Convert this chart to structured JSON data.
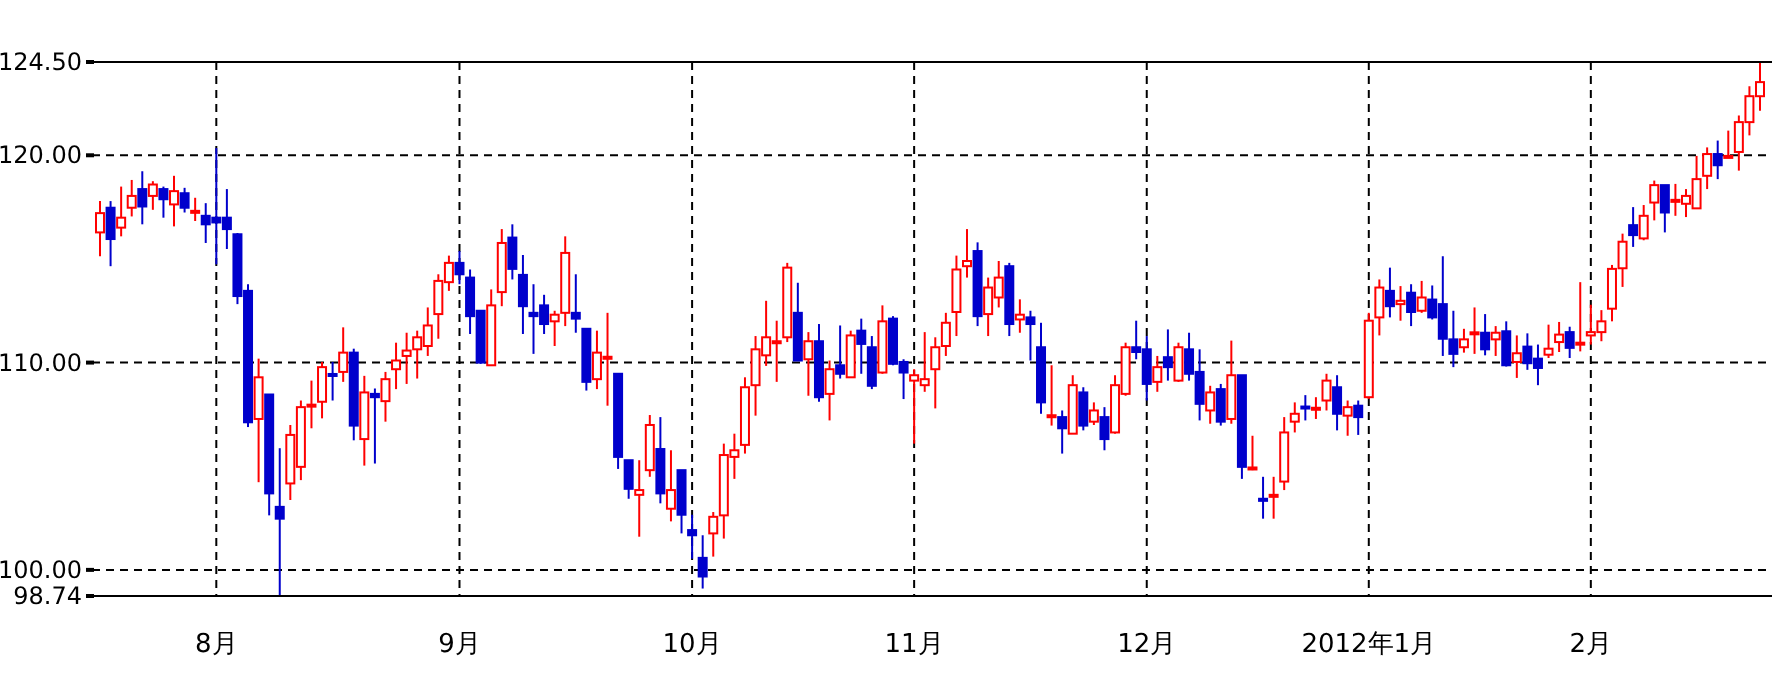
{
  "chart_data": {
    "type": "candlestick",
    "categories": [
      null,
      null,
      null,
      null,
      null,
      null,
      null,
      null,
      null,
      null,
      null,
      "8月",
      null,
      null,
      null,
      null,
      null,
      null,
      null,
      null,
      null,
      null,
      null,
      null,
      null,
      null,
      null,
      null,
      null,
      null,
      null,
      null,
      null,
      null,
      "9月",
      null,
      null,
      null,
      null,
      null,
      null,
      null,
      null,
      null,
      null,
      null,
      null,
      null,
      null,
      null,
      null,
      null,
      null,
      null,
      null,
      null,
      "10月",
      null,
      null,
      null,
      null,
      null,
      null,
      null,
      null,
      null,
      null,
      null,
      null,
      null,
      null,
      null,
      null,
      null,
      null,
      null,
      null,
      "11月",
      null,
      null,
      null,
      null,
      null,
      null,
      null,
      null,
      null,
      null,
      null,
      null,
      null,
      null,
      null,
      null,
      null,
      null,
      null,
      null,
      null,
      "12月",
      null,
      null,
      null,
      null,
      null,
      null,
      null,
      null,
      null,
      null,
      null,
      null,
      null,
      null,
      null,
      null,
      null,
      null,
      null,
      null,
      "2012年1月",
      null,
      null,
      null,
      null,
      null,
      null,
      null,
      null,
      null,
      null,
      null,
      null,
      null,
      null,
      null,
      null,
      null,
      null,
      null,
      null,
      "2月",
      null,
      null,
      null,
      null,
      null,
      null,
      null,
      null,
      null,
      null,
      null,
      null,
      null,
      null,
      null,
      null
    ],
    "ohlc": [
      [
        116.28,
        117.79,
        115.13,
        117.21
      ],
      [
        117.47,
        117.79,
        114.65,
        115.96
      ],
      [
        116.51,
        118.49,
        116.09,
        116.99
      ],
      [
        117.47,
        118.81,
        117.05,
        118.04
      ],
      [
        118.37,
        119.23,
        116.67,
        117.53
      ],
      [
        118.04,
        118.75,
        117.37,
        118.59
      ],
      [
        118.37,
        118.49,
        116.99,
        117.88
      ],
      [
        117.63,
        119.01,
        116.57,
        118.27
      ],
      [
        118.17,
        118.43,
        117.24,
        117.47
      ],
      [
        117.29,
        117.95,
        116.83,
        117.32
      ],
      [
        117.08,
        117.69,
        115.77,
        116.67
      ],
      [
        116.99,
        120.35,
        114.74,
        116.76
      ],
      [
        116.99,
        118.37,
        115.48,
        116.44
      ],
      [
        116.19,
        116.25,
        112.82,
        113.21
      ],
      [
        113.46,
        113.78,
        106.89,
        107.12
      ],
      [
        107.28,
        110.19,
        104.23,
        109.29
      ],
      [
        108.46,
        108.46,
        102.63,
        103.69
      ],
      [
        103.04,
        105.87,
        98.74,
        102.47
      ],
      [
        104.17,
        106.99,
        103.37,
        106.51
      ],
      [
        104.97,
        108.17,
        104.33,
        107.85
      ],
      [
        107.93,
        109.13,
        106.83,
        107.97
      ],
      [
        108.11,
        110.03,
        107.31,
        109.78
      ],
      [
        109.45,
        110.03,
        108.17,
        109.4
      ],
      [
        109.55,
        111.7,
        109.07,
        110.48
      ],
      [
        110.48,
        110.67,
        106.25,
        106.96
      ],
      [
        106.31,
        109.36,
        105.03,
        108.56
      ],
      [
        108.49,
        108.75,
        105.13,
        108.33
      ],
      [
        108.14,
        109.55,
        107.15,
        109.2
      ],
      [
        109.68,
        110.96,
        108.72,
        110.1
      ],
      [
        110.32,
        111.44,
        108.97,
        110.58
      ],
      [
        110.64,
        111.54,
        109.23,
        111.22
      ],
      [
        110.8,
        112.66,
        110.32,
        111.79
      ],
      [
        112.34,
        114.26,
        111.15,
        113.94
      ],
      [
        113.88,
        115.16,
        113.46,
        114.81
      ],
      [
        114.81,
        115.38,
        113.78,
        114.26
      ],
      [
        114.1,
        114.49,
        111.38,
        112.24
      ],
      [
        112.5,
        112.5,
        109.94,
        110.0
      ],
      [
        109.87,
        113.53,
        109.87,
        112.76
      ],
      [
        113.4,
        116.44,
        112.72,
        115.77
      ],
      [
        116.03,
        116.67,
        114.01,
        114.52
      ],
      [
        114.23,
        115.19,
        111.38,
        112.72
      ],
      [
        112.4,
        113.78,
        110.42,
        112.24
      ],
      [
        112.76,
        113.27,
        111.38,
        111.86
      ],
      [
        111.99,
        112.5,
        110.8,
        112.31
      ],
      [
        112.4,
        116.09,
        111.76,
        115.29
      ],
      [
        112.4,
        114.26,
        111.44,
        112.12
      ],
      [
        111.63,
        111.63,
        108.65,
        109.07
      ],
      [
        109.2,
        111.54,
        108.72,
        110.48
      ],
      [
        110.22,
        112.4,
        107.92,
        110.28
      ],
      [
        109.46,
        109.46,
        104.87,
        105.45
      ],
      [
        105.29,
        105.29,
        103.43,
        103.91
      ],
      [
        103.62,
        105.29,
        101.6,
        103.85
      ],
      [
        104.81,
        107.47,
        104.49,
        106.99
      ],
      [
        105.83,
        107.37,
        103.21,
        103.69
      ],
      [
        102.95,
        105.77,
        102.34,
        103.85
      ],
      [
        104.81,
        104.81,
        101.76,
        102.66
      ],
      [
        101.92,
        102.66,
        100.54,
        101.67
      ],
      [
        100.58,
        101.67,
        99.1,
        99.68
      ],
      [
        101.76,
        102.79,
        100.64,
        102.56
      ],
      [
        102.63,
        106.09,
        101.51,
        105.54
      ],
      [
        105.45,
        106.57,
        104.39,
        105.77
      ],
      [
        106.03,
        109.29,
        105.61,
        108.81
      ],
      [
        108.91,
        111.28,
        107.44,
        110.64
      ],
      [
        110.35,
        112.98,
        109.84,
        111.22
      ],
      [
        110.99,
        112.02,
        109.07,
        111.03
      ],
      [
        111.22,
        114.81,
        110.99,
        114.58
      ],
      [
        112.4,
        113.85,
        110.1,
        110.1
      ],
      [
        110.16,
        111.47,
        108.4,
        111.03
      ],
      [
        111.03,
        111.86,
        108.11,
        108.33
      ],
      [
        108.49,
        110.1,
        107.21,
        109.68
      ],
      [
        109.87,
        111.79,
        109.23,
        109.46
      ],
      [
        109.29,
        111.54,
        109.29,
        111.31
      ],
      [
        111.54,
        112.12,
        109.46,
        110.9
      ],
      [
        110.74,
        111.28,
        108.72,
        108.88
      ],
      [
        109.52,
        112.76,
        109.46,
        111.99
      ],
      [
        112.12,
        112.24,
        109.87,
        109.94
      ],
      [
        110.03,
        110.16,
        108.24,
        109.52
      ],
      [
        109.13,
        109.68,
        106.09,
        109.39
      ],
      [
        108.91,
        111.47,
        108.59,
        109.2
      ],
      [
        109.68,
        111.22,
        107.79,
        110.74
      ],
      [
        110.8,
        112.4,
        110.32,
        111.92
      ],
      [
        112.44,
        115.16,
        111.28,
        114.49
      ],
      [
        114.65,
        116.44,
        114.1,
        114.9
      ],
      [
        115.38,
        115.8,
        111.76,
        112.24
      ],
      [
        112.34,
        114.1,
        111.28,
        113.62
      ],
      [
        113.14,
        114.9,
        112.66,
        114.1
      ],
      [
        114.65,
        114.81,
        111.28,
        111.86
      ],
      [
        112.08,
        113.05,
        111.44,
        112.31
      ],
      [
        112.18,
        112.5,
        110.1,
        111.86
      ],
      [
        110.74,
        111.92,
        107.53,
        108.08
      ],
      [
        107.4,
        109.87,
        106.96,
        107.46
      ],
      [
        107.37,
        107.69,
        105.61,
        106.83
      ],
      [
        106.57,
        109.39,
        106.57,
        108.91
      ],
      [
        108.56,
        108.81,
        106.73,
        106.96
      ],
      [
        107.15,
        108.08,
        106.99,
        107.69
      ],
      [
        107.37,
        107.85,
        105.77,
        106.31
      ],
      [
        106.63,
        109.39,
        106.57,
        108.91
      ],
      [
        108.49,
        110.96,
        108.4,
        110.74
      ],
      [
        110.74,
        112.02,
        110.16,
        110.51
      ],
      [
        110.64,
        111.28,
        108.17,
        108.97
      ],
      [
        109.07,
        110.32,
        108.59,
        109.78
      ],
      [
        110.26,
        111.6,
        109.13,
        109.78
      ],
      [
        109.13,
        110.96,
        109.07,
        110.74
      ],
      [
        110.64,
        111.44,
        109.13,
        109.46
      ],
      [
        109.55,
        110.64,
        107.21,
        108.01
      ],
      [
        107.69,
        108.88,
        107.05,
        108.56
      ],
      [
        108.72,
        108.97,
        106.96,
        107.15
      ],
      [
        107.28,
        111.06,
        107.05,
        109.39
      ],
      [
        109.39,
        109.39,
        104.39,
        104.97
      ],
      [
        104.88,
        106.47,
        104.81,
        104.94
      ],
      [
        103.43,
        104.49,
        102.47,
        103.33
      ],
      [
        103.56,
        104.49,
        102.47,
        103.62
      ],
      [
        104.26,
        107.37,
        103.85,
        106.63
      ],
      [
        107.15,
        108.08,
        106.63,
        107.53
      ],
      [
        107.88,
        108.43,
        107.21,
        107.82
      ],
      [
        107.76,
        108.33,
        107.28,
        107.82
      ],
      [
        108.17,
        109.46,
        107.69,
        109.13
      ],
      [
        108.81,
        109.39,
        106.73,
        107.53
      ],
      [
        107.44,
        108.17,
        106.47,
        107.85
      ],
      [
        107.92,
        108.17,
        106.51,
        107.37
      ],
      [
        108.33,
        112.4,
        108.24,
        112.02
      ],
      [
        112.18,
        114.01,
        111.31,
        113.62
      ],
      [
        113.46,
        114.58,
        112.18,
        112.72
      ],
      [
        112.82,
        113.69,
        112.02,
        112.98
      ],
      [
        113.37,
        113.78,
        111.76,
        112.44
      ],
      [
        112.5,
        113.94,
        112.4,
        113.14
      ],
      [
        113.04,
        113.72,
        112.08,
        112.18
      ],
      [
        112.82,
        115.13,
        110.32,
        111.15
      ],
      [
        111.12,
        112.5,
        109.78,
        110.42
      ],
      [
        110.74,
        111.63,
        110.48,
        111.12
      ],
      [
        111.4,
        112.66,
        110.42,
        111.46
      ],
      [
        111.44,
        112.34,
        110.35,
        110.64
      ],
      [
        111.12,
        111.76,
        110.32,
        111.44
      ],
      [
        111.51,
        111.99,
        109.81,
        109.87
      ],
      [
        110.03,
        111.31,
        109.26,
        110.45
      ],
      [
        110.77,
        111.41,
        109.65,
        109.97
      ],
      [
        110.19,
        110.87,
        108.91,
        109.74
      ],
      [
        110.38,
        111.83,
        110.22,
        110.67
      ],
      [
        110.99,
        111.96,
        110.51,
        111.35
      ],
      [
        111.47,
        111.73,
        110.22,
        110.71
      ],
      [
        110.9,
        113.88,
        110.54,
        110.96
      ],
      [
        111.31,
        112.79,
        110.87,
        111.47
      ],
      [
        111.47,
        112.53,
        111.03,
        111.99
      ],
      [
        112.6,
        114.71,
        111.99,
        114.52
      ],
      [
        114.55,
        116.22,
        113.65,
        115.83
      ],
      [
        116.63,
        117.5,
        115.58,
        116.15
      ],
      [
        115.99,
        117.6,
        115.9,
        117.08
      ],
      [
        117.72,
        118.78,
        116.86,
        118.56
      ],
      [
        118.56,
        118.56,
        116.28,
        117.24
      ],
      [
        117.79,
        118.62,
        117.08,
        117.85
      ],
      [
        117.66,
        118.37,
        117.02,
        118.04
      ],
      [
        117.44,
        119.97,
        117.44,
        118.85
      ],
      [
        119.01,
        120.38,
        118.37,
        120.06
      ],
      [
        120.06,
        120.71,
        118.85,
        119.52
      ],
      [
        119.9,
        121.19,
        119.88,
        119.97
      ],
      [
        120.16,
        121.92,
        119.26,
        121.6
      ],
      [
        121.6,
        123.33,
        120.96,
        122.85
      ],
      [
        122.85,
        124.5,
        122.15,
        123.53
      ]
    ],
    "colors": [
      "#ff0000",
      "#0000cc",
      "#ff0000",
      "#ff0000",
      "#0000cc",
      "#ff0000",
      "#0000cc",
      "#ff0000",
      "#0000cc",
      "#ff0000",
      "#0000cc",
      "#0000cc",
      "#0000cc",
      "#0000cc",
      "#0000cc",
      "#ff0000",
      "#0000cc",
      "#0000cc",
      "#ff0000",
      "#ff0000",
      "#ff0000",
      "#ff0000",
      "#0000cc",
      "#ff0000",
      "#0000cc",
      "#ff0000",
      "#0000cc",
      "#ff0000",
      "#ff0000",
      "#ff0000",
      "#ff0000",
      "#ff0000",
      "#ff0000",
      "#ff0000",
      "#0000cc",
      "#0000cc",
      "#0000cc",
      "#ff0000",
      "#ff0000",
      "#0000cc",
      "#0000cc",
      "#0000cc",
      "#0000cc",
      "#ff0000",
      "#ff0000",
      "#0000cc",
      "#0000cc",
      "#ff0000",
      "#ff0000",
      "#0000cc",
      "#0000cc",
      "#ff0000",
      "#ff0000",
      "#0000cc",
      "#ff0000",
      "#0000cc",
      "#0000cc",
      "#0000cc",
      "#ff0000",
      "#ff0000",
      "#ff0000",
      "#ff0000",
      "#ff0000",
      "#ff0000",
      "#ff0000",
      "#ff0000",
      "#0000cc",
      "#ff0000",
      "#0000cc",
      "#ff0000",
      "#0000cc",
      "#ff0000",
      "#0000cc",
      "#0000cc",
      "#ff0000",
      "#0000cc",
      "#0000cc",
      "#ff0000",
      "#ff0000",
      "#ff0000",
      "#ff0000",
      "#ff0000",
      "#ff0000",
      "#0000cc",
      "#ff0000",
      "#ff0000",
      "#0000cc",
      "#ff0000",
      "#0000cc",
      "#0000cc",
      "#ff0000",
      "#0000cc",
      "#ff0000",
      "#0000cc",
      "#ff0000",
      "#0000cc",
      "#ff0000",
      "#ff0000",
      "#0000cc",
      "#0000cc",
      "#ff0000",
      "#0000cc",
      "#ff0000",
      "#0000cc",
      "#0000cc",
      "#ff0000",
      "#0000cc",
      "#ff0000",
      "#0000cc",
      "#ff0000",
      "#0000cc",
      "#ff0000",
      "#ff0000",
      "#ff0000",
      "#0000cc",
      "#ff0000",
      "#ff0000",
      "#0000cc",
      "#ff0000",
      "#0000cc",
      "#ff0000",
      "#ff0000",
      "#0000cc",
      "#ff0000",
      "#0000cc",
      "#ff0000",
      "#0000cc",
      "#0000cc",
      "#0000cc",
      "#ff0000",
      "#ff0000",
      "#0000cc",
      "#ff0000",
      "#0000cc",
      "#ff0000",
      "#0000cc",
      "#0000cc",
      "#ff0000",
      "#ff0000",
      "#0000cc",
      "#ff0000",
      "#ff0000",
      "#ff0000",
      "#ff0000",
      "#ff0000",
      "#0000cc",
      "#ff0000",
      "#ff0000",
      "#0000cc",
      "#ff0000",
      "#ff0000",
      "#ff0000",
      "#ff0000",
      "#0000cc",
      "#ff0000",
      "#ff0000",
      "#ff0000",
      "#ff0000"
    ],
    "ylim": [
      98.74,
      124.5
    ],
    "yticks": [
      98.74,
      {
        "value": 100,
        "label": "100.00"
      },
      {
        "value": 110,
        "label": "110.00"
      },
      {
        "value": 120,
        "label": "120.00"
      },
      {
        "value": 124.5,
        "label": "124.50"
      }
    ],
    "grid": true
  }
}
